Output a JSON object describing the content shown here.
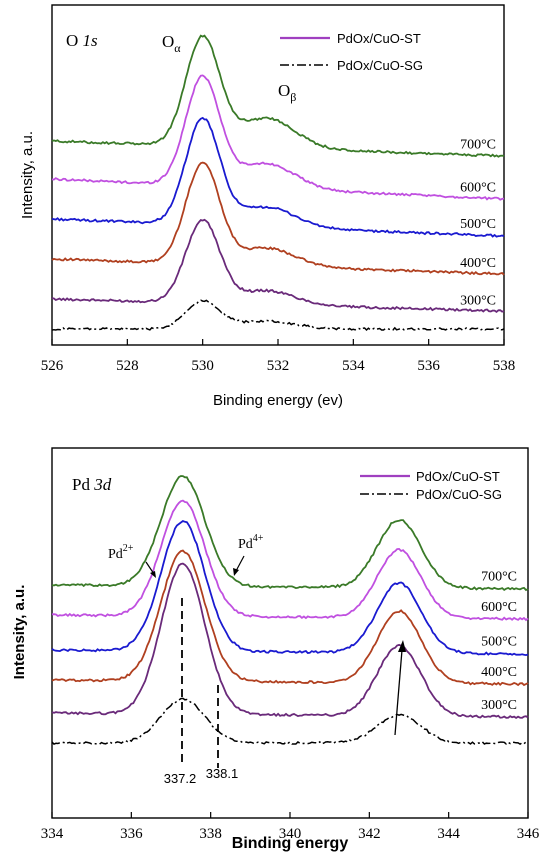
{
  "chart_data": [
    {
      "type": "line",
      "panel_label": "O",
      "panel_label_italic": "1s",
      "xlabel": "Binding energy (ev)",
      "ylabel": "Intensity, a.u.",
      "xlim": [
        526,
        538
      ],
      "x_ticks": [
        "526",
        "528",
        "530",
        "532",
        "534",
        "536",
        "538"
      ],
      "legend": [
        {
          "label": "PdOx/CuO-ST",
          "style": "solid",
          "color": "#a040c0"
        },
        {
          "label": "PdOx/CuO-SG",
          "style": "dashdot",
          "color": "#000000"
        }
      ],
      "annotations": [
        {
          "text": "O",
          "sub": "α",
          "x": 529.6
        },
        {
          "text": "O",
          "sub": "β",
          "x": 531.8
        }
      ],
      "peaks": [
        {
          "center": 530.0,
          "width": 0.45
        },
        {
          "center": 531.7,
          "width": 0.75
        }
      ],
      "series": [
        {
          "name": "PdOx/CuO-SG",
          "temp_label": "",
          "color": "#000000",
          "style": "dashdot",
          "baseline": 5,
          "tail": 0,
          "peak_heights": [
            28,
            8
          ]
        },
        {
          "name": "PdOx/CuO-ST",
          "temp_label": "300°C",
          "color": "#6a2a7a",
          "style": "solid",
          "baseline": 35,
          "tail": -12,
          "peak_heights": [
            82,
            14
          ]
        },
        {
          "name": "PdOx/CuO-ST",
          "temp_label": "400°C",
          "color": "#b04020",
          "style": "solid",
          "baseline": 75,
          "tail": -15,
          "peak_heights": [
            100,
            18
          ]
        },
        {
          "name": "PdOx/CuO-ST",
          "temp_label": "500°C",
          "color": "#1a1ad0",
          "style": "solid",
          "baseline": 115,
          "tail": -17,
          "peak_heights": [
            105,
            20
          ]
        },
        {
          "name": "PdOx/CuO-ST",
          "temp_label": "600°C",
          "color": "#c050e0",
          "style": "solid",
          "baseline": 155,
          "tail": -20,
          "peak_heights": [
            108,
            25
          ]
        },
        {
          "name": "PdOx/CuO-ST",
          "temp_label": "700°C",
          "color": "#3a7a28",
          "style": "solid",
          "baseline": 193,
          "tail": -15,
          "peak_heights": [
            108,
            30
          ]
        }
      ]
    },
    {
      "type": "line",
      "panel_label": "Pd",
      "panel_label_italic": "3d",
      "xlabel": "Binding energy",
      "ylabel": "Intensity, a.u.",
      "xlim": [
        334,
        346
      ],
      "x_ticks": [
        "334",
        "336",
        "338",
        "340",
        "342",
        "344",
        "346"
      ],
      "legend": [
        {
          "label": "PdOx/CuO-ST",
          "style": "solid",
          "color": "#a040c0"
        },
        {
          "label": "PdOx/CuO-SG",
          "style": "dashdot",
          "color": "#000000"
        }
      ],
      "annotations": [
        {
          "text": "Pd",
          "sup": "2+"
        },
        {
          "text": "Pd",
          "sup": "4+"
        },
        {
          "text": "337.2",
          "x": 337.2
        },
        {
          "text": "338.1",
          "x": 338.1
        }
      ],
      "peaks": [
        {
          "center": 337.3,
          "width": 0.55
        },
        {
          "center": 342.75,
          "width": 0.55
        }
      ],
      "series": [
        {
          "name": "PdOx/CuO-SG",
          "temp_label": "",
          "color": "#000000",
          "style": "dashdot",
          "baseline": 12,
          "tail": 0,
          "peak_heights": [
            44,
            28
          ]
        },
        {
          "name": "PdOx/CuO-ST",
          "temp_label": "300°C",
          "color": "#6a2a7a",
          "style": "solid",
          "baseline": 42,
          "tail": -4,
          "peak_heights": [
            150,
            70
          ]
        },
        {
          "name": "PdOx/CuO-ST",
          "temp_label": "400°C",
          "color": "#b04020",
          "style": "solid",
          "baseline": 75,
          "tail": -4,
          "peak_heights": [
            130,
            72
          ]
        },
        {
          "name": "PdOx/CuO-ST",
          "temp_label": "500°C",
          "color": "#1a1ad0",
          "style": "solid",
          "baseline": 105,
          "tail": -4,
          "peak_heights": [
            130,
            70
          ]
        },
        {
          "name": "PdOx/CuO-ST",
          "temp_label": "600°C",
          "color": "#c050e0",
          "style": "solid",
          "baseline": 140,
          "tail": -4,
          "peak_heights": [
            115,
            68
          ]
        },
        {
          "name": "PdOx/CuO-ST",
          "temp_label": "700°C",
          "color": "#3a7a28",
          "style": "solid",
          "baseline": 170,
          "tail": -4,
          "peak_heights": [
            110,
            68
          ]
        }
      ]
    }
  ]
}
